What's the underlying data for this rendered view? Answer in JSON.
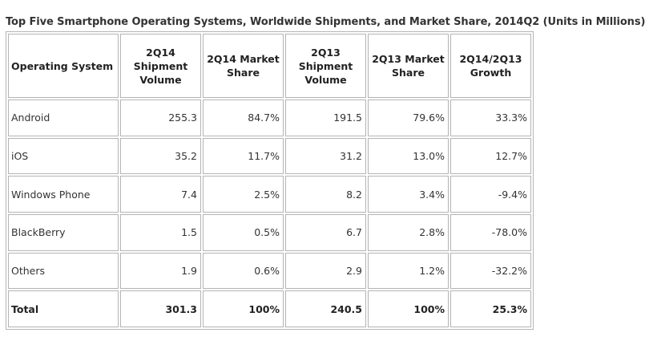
{
  "title": "Top Five Smartphone Operating Systems, Worldwide Shipments, and Market Share, 2014Q2 (Units in Millions)",
  "chart_data": {
    "type": "table",
    "title": "Top Five Smartphone Operating Systems, Worldwide Shipments, and Market Share, 2014Q2 (Units in Millions)",
    "columns": [
      {
        "key": "os",
        "line1": "Operating System",
        "line2": "",
        "line3": ""
      },
      {
        "key": "q214_volume",
        "line1": "2Q14",
        "line2": "Shipment",
        "line3": "Volume"
      },
      {
        "key": "q214_share",
        "line1": "2Q14 Market",
        "line2": "Share",
        "line3": ""
      },
      {
        "key": "q213_volume",
        "line1": "2Q13",
        "line2": "Shipment",
        "line3": "Volume"
      },
      {
        "key": "q213_share",
        "line1": "2Q13 Market",
        "line2": "Share",
        "line3": ""
      },
      {
        "key": "growth",
        "line1": "2Q14/2Q13",
        "line2": "Growth",
        "line3": ""
      }
    ],
    "rows": [
      {
        "os": "Android",
        "q214_volume": "255.3",
        "q214_share": "84.7%",
        "q213_volume": "191.5",
        "q213_share": "79.6%",
        "growth": "33.3%"
      },
      {
        "os": "iOS",
        "q214_volume": "35.2",
        "q214_share": "11.7%",
        "q213_volume": "31.2",
        "q213_share": "13.0%",
        "growth": "12.7%"
      },
      {
        "os": "Windows Phone",
        "q214_volume": "7.4",
        "q214_share": "2.5%",
        "q213_volume": "8.2",
        "q213_share": "3.4%",
        "growth": "-9.4%"
      },
      {
        "os": "BlackBerry",
        "q214_volume": "1.5",
        "q214_share": "0.5%",
        "q213_volume": "6.7",
        "q213_share": "2.8%",
        "growth": "-78.0%"
      },
      {
        "os": "Others",
        "q214_volume": "1.9",
        "q214_share": "0.6%",
        "q213_volume": "2.9",
        "q213_share": "1.2%",
        "growth": "-32.2%"
      }
    ],
    "total": {
      "os": "Total",
      "q214_volume": "301.3",
      "q214_share": "100%",
      "q213_volume": "240.5",
      "q213_share": "100%",
      "growth": "25.3%"
    }
  },
  "colors": {
    "border": "#b4b4b4",
    "title_text": "#333333",
    "body_text": "#333333",
    "background": "#ffffff"
  }
}
